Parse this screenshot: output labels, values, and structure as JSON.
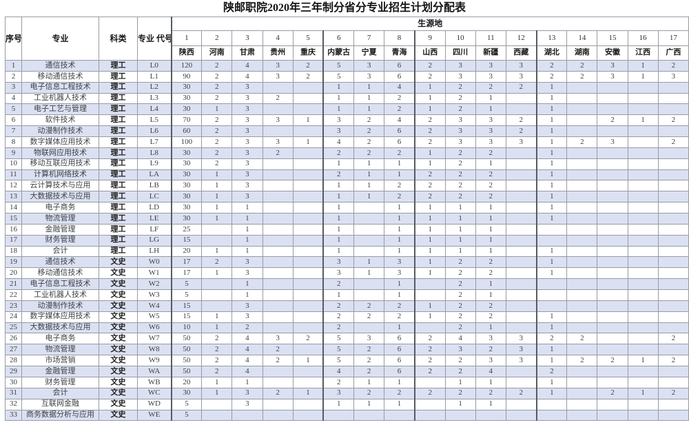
{
  "title": "陕邮职院2020年三年制分省分专业招生计划分配表",
  "colors": {
    "band_row": "#dbe1f2",
    "grid_line": "#959aa2",
    "strong_line": "#565b61",
    "text": "#3d4043"
  },
  "table": {
    "header": {
      "index_label": "序号",
      "major_label": "专业",
      "category_label": "科类",
      "major_code_label": "专业\n代号",
      "source_region_label": "生源地",
      "column_numbers": [
        "1",
        "2",
        "3",
        "4",
        "5",
        "6",
        "7",
        "8",
        "9",
        "10",
        "11",
        "12",
        "13",
        "14",
        "15",
        "16",
        "17"
      ],
      "provinces": [
        "陕西",
        "河南",
        "甘肃",
        "贵州",
        "重庆",
        "内蒙古",
        "宁夏",
        "青海",
        "山西",
        "四川",
        "新疆",
        "西藏",
        "湖北",
        "湖南",
        "安徽",
        "江西",
        "广西"
      ]
    },
    "rows": [
      {
        "no": "1",
        "major": "通信技术",
        "category": "理工",
        "code": "L0",
        "values": [
          "120",
          "2",
          "4",
          "3",
          "2",
          "5",
          "3",
          "6",
          "2",
          "3",
          "3",
          "3",
          "2",
          "2",
          "3",
          "1",
          "2"
        ]
      },
      {
        "no": "2",
        "major": "移动通信技术",
        "category": "理工",
        "code": "L1",
        "values": [
          "90",
          "2",
          "4",
          "3",
          "2",
          "5",
          "3",
          "6",
          "2",
          "3",
          "3",
          "3",
          "2",
          "2",
          "3",
          "1",
          "3"
        ]
      },
      {
        "no": "3",
        "major": "电子信息工程技术",
        "category": "理工",
        "code": "L2",
        "values": [
          "30",
          "2",
          "3",
          "",
          "",
          "1",
          "1",
          "4",
          "1",
          "2",
          "2",
          "2",
          "1",
          "",
          "",
          "",
          ""
        ]
      },
      {
        "no": "4",
        "major": "工业机器人技术",
        "category": "理工",
        "code": "L3",
        "values": [
          "30",
          "2",
          "3",
          "2",
          "",
          "1",
          "1",
          "2",
          "1",
          "2",
          "1",
          "",
          "1",
          "",
          "",
          "",
          ""
        ]
      },
      {
        "no": "5",
        "major": "电子工艺与管理",
        "category": "理工",
        "code": "L4",
        "values": [
          "30",
          "1",
          "3",
          "",
          "",
          "1",
          "1",
          "2",
          "1",
          "2",
          "1",
          "",
          "1",
          "",
          "",
          "",
          ""
        ]
      },
      {
        "no": "6",
        "major": "软件技术",
        "category": "理工",
        "code": "L5",
        "values": [
          "70",
          "2",
          "3",
          "3",
          "1",
          "3",
          "2",
          "4",
          "2",
          "3",
          "3",
          "2",
          "1",
          "",
          "2",
          "1",
          "2"
        ]
      },
      {
        "no": "7",
        "major": "动漫制作技术",
        "category": "理工",
        "code": "L6",
        "values": [
          "60",
          "2",
          "3",
          "",
          "",
          "3",
          "2",
          "6",
          "2",
          "3",
          "3",
          "2",
          "1",
          "",
          "",
          "",
          ""
        ]
      },
      {
        "no": "8",
        "major": "数字媒体应用技术",
        "category": "理工",
        "code": "L7",
        "values": [
          "100",
          "2",
          "3",
          "3",
          "1",
          "4",
          "2",
          "6",
          "2",
          "3",
          "3",
          "3",
          "1",
          "2",
          "3",
          "",
          "2"
        ]
      },
      {
        "no": "9",
        "major": "物联网应用技术",
        "category": "理工",
        "code": "L8",
        "values": [
          "30",
          "2",
          "3",
          "2",
          "",
          "2",
          "2",
          "2",
          "1",
          "2",
          "2",
          "",
          "1",
          "",
          "",
          "",
          ""
        ]
      },
      {
        "no": "10",
        "major": "移动互联应用技术",
        "category": "理工",
        "code": "L9",
        "values": [
          "30",
          "2",
          "3",
          "",
          "",
          "1",
          "1",
          "1",
          "1",
          "2",
          "1",
          "",
          "1",
          "",
          "",
          "",
          ""
        ]
      },
      {
        "no": "11",
        "major": "计算机网络技术",
        "category": "理工",
        "code": "LA",
        "values": [
          "30",
          "1",
          "3",
          "",
          "",
          "2",
          "1",
          "1",
          "2",
          "2",
          "2",
          "",
          "1",
          "",
          "",
          "",
          ""
        ]
      },
      {
        "no": "12",
        "major": "云计算技术与应用",
        "category": "理工",
        "code": "LB",
        "values": [
          "30",
          "1",
          "3",
          "",
          "",
          "1",
          "1",
          "2",
          "2",
          "2",
          "2",
          "",
          "1",
          "",
          "",
          "",
          ""
        ]
      },
      {
        "no": "13",
        "major": "大数据技术与应用",
        "category": "理工",
        "code": "LC",
        "values": [
          "30",
          "1",
          "3",
          "",
          "",
          "1",
          "1",
          "2",
          "2",
          "2",
          "2",
          "",
          "1",
          "",
          "",
          "",
          ""
        ]
      },
      {
        "no": "14",
        "major": "电子商务",
        "category": "理工",
        "code": "LD",
        "values": [
          "30",
          "1",
          "1",
          "",
          "",
          "1",
          "",
          "1",
          "1",
          "1",
          "1",
          "",
          "1",
          "",
          "",
          "",
          ""
        ]
      },
      {
        "no": "15",
        "major": "物流管理",
        "category": "理工",
        "code": "LE",
        "values": [
          "30",
          "1",
          "1",
          "",
          "",
          "1",
          "",
          "1",
          "1",
          "1",
          "1",
          "",
          "1",
          "",
          "",
          "",
          ""
        ]
      },
      {
        "no": "16",
        "major": "金融管理",
        "category": "理工",
        "code": "LF",
        "values": [
          "25",
          "",
          "1",
          "",
          "",
          "1",
          "",
          "1",
          "1",
          "1",
          "1",
          "",
          "",
          "",
          "",
          "",
          ""
        ]
      },
      {
        "no": "17",
        "major": "财务管理",
        "category": "理工",
        "code": "LG",
        "values": [
          "15",
          "",
          "1",
          "",
          "",
          "1",
          "",
          "1",
          "1",
          "1",
          "1",
          "",
          "",
          "",
          "",
          "",
          ""
        ]
      },
      {
        "no": "18",
        "major": "会计",
        "category": "理工",
        "code": "LH",
        "values": [
          "20",
          "1",
          "1",
          "",
          "",
          "1",
          "",
          "1",
          "1",
          "1",
          "1",
          "",
          "1",
          "",
          "",
          "",
          ""
        ]
      },
      {
        "no": "19",
        "major": "通信技术",
        "category": "文史",
        "code": "W0",
        "values": [
          "17",
          "2",
          "3",
          "",
          "",
          "3",
          "1",
          "3",
          "1",
          "2",
          "2",
          "",
          "1",
          "",
          "",
          "",
          ""
        ]
      },
      {
        "no": "20",
        "major": "移动通信技术",
        "category": "文史",
        "code": "W1",
        "values": [
          "17",
          "1",
          "3",
          "",
          "",
          "3",
          "1",
          "3",
          "1",
          "2",
          "2",
          "",
          "1",
          "",
          "",
          "",
          ""
        ]
      },
      {
        "no": "21",
        "major": "电子信息工程技术",
        "category": "文史",
        "code": "W2",
        "values": [
          "5",
          "",
          "1",
          "",
          "",
          "2",
          "",
          "1",
          "",
          "2",
          "1",
          "",
          "",
          "",
          "",
          "",
          ""
        ]
      },
      {
        "no": "22",
        "major": "工业机器人技术",
        "category": "文史",
        "code": "W3",
        "values": [
          "5",
          "",
          "1",
          "",
          "",
          "1",
          "",
          "1",
          "",
          "2",
          "1",
          "",
          "",
          "",
          "",
          "",
          ""
        ]
      },
      {
        "no": "23",
        "major": "动漫制作技术",
        "category": "文史",
        "code": "W4",
        "values": [
          "15",
          "",
          "3",
          "",
          "",
          "2",
          "2",
          "2",
          "1",
          "2",
          "2",
          "",
          "",
          "",
          "",
          "",
          ""
        ]
      },
      {
        "no": "24",
        "major": "数字媒体应用技术",
        "category": "文史",
        "code": "W5",
        "values": [
          "15",
          "1",
          "3",
          "",
          "",
          "2",
          "2",
          "2",
          "1",
          "2",
          "2",
          "",
          "1",
          "",
          "",
          "",
          ""
        ]
      },
      {
        "no": "25",
        "major": "大数据技术与应用",
        "category": "文史",
        "code": "W6",
        "values": [
          "10",
          "1",
          "2",
          "",
          "",
          "2",
          "",
          "1",
          "",
          "2",
          "1",
          "",
          "1",
          "",
          "",
          "",
          ""
        ]
      },
      {
        "no": "26",
        "major": "电子商务",
        "category": "文史",
        "code": "W7",
        "values": [
          "50",
          "2",
          "4",
          "3",
          "2",
          "5",
          "3",
          "6",
          "2",
          "4",
          "3",
          "3",
          "2",
          "2",
          "",
          "",
          "2"
        ]
      },
      {
        "no": "27",
        "major": "物流管理",
        "category": "文史",
        "code": "W8",
        "values": [
          "50",
          "2",
          "4",
          "2",
          "",
          "5",
          "2",
          "6",
          "2",
          "3",
          "2",
          "3",
          "1",
          "",
          "",
          "",
          ""
        ]
      },
      {
        "no": "28",
        "major": "市场营销",
        "category": "文史",
        "code": "W9",
        "values": [
          "50",
          "2",
          "4",
          "2",
          "1",
          "5",
          "2",
          "6",
          "2",
          "2",
          "3",
          "3",
          "1",
          "2",
          "2",
          "1",
          "2"
        ]
      },
      {
        "no": "29",
        "major": "金融管理",
        "category": "文史",
        "code": "WA",
        "values": [
          "50",
          "2",
          "4",
          "",
          "",
          "4",
          "2",
          "6",
          "2",
          "2",
          "4",
          "",
          "2",
          "",
          "",
          "",
          ""
        ]
      },
      {
        "no": "30",
        "major": "财务管理",
        "category": "文史",
        "code": "WB",
        "values": [
          "20",
          "1",
          "1",
          "",
          "",
          "2",
          "1",
          "1",
          "",
          "1",
          "1",
          "",
          "1",
          "",
          "",
          "",
          ""
        ]
      },
      {
        "no": "31",
        "major": "会计",
        "category": "文史",
        "code": "WC",
        "values": [
          "30",
          "1",
          "3",
          "2",
          "1",
          "3",
          "2",
          "2",
          "2",
          "2",
          "2",
          "2",
          "1",
          "",
          "2",
          "1",
          "2"
        ]
      },
      {
        "no": "32",
        "major": "互联网金融",
        "category": "文史",
        "code": "WD",
        "values": [
          "5",
          "",
          "3",
          "",
          "",
          "1",
          "1",
          "1",
          "",
          "1",
          "1",
          "",
          "",
          "",
          "",
          "",
          ""
        ]
      },
      {
        "no": "33",
        "major": "商务数据分析与应用",
        "category": "文史",
        "code": "WE",
        "values": [
          "5",
          "",
          "",
          "",
          "",
          "",
          "",
          "",
          "",
          "",
          "",
          "",
          "",
          "",
          "",
          "",
          ""
        ]
      }
    ]
  }
}
